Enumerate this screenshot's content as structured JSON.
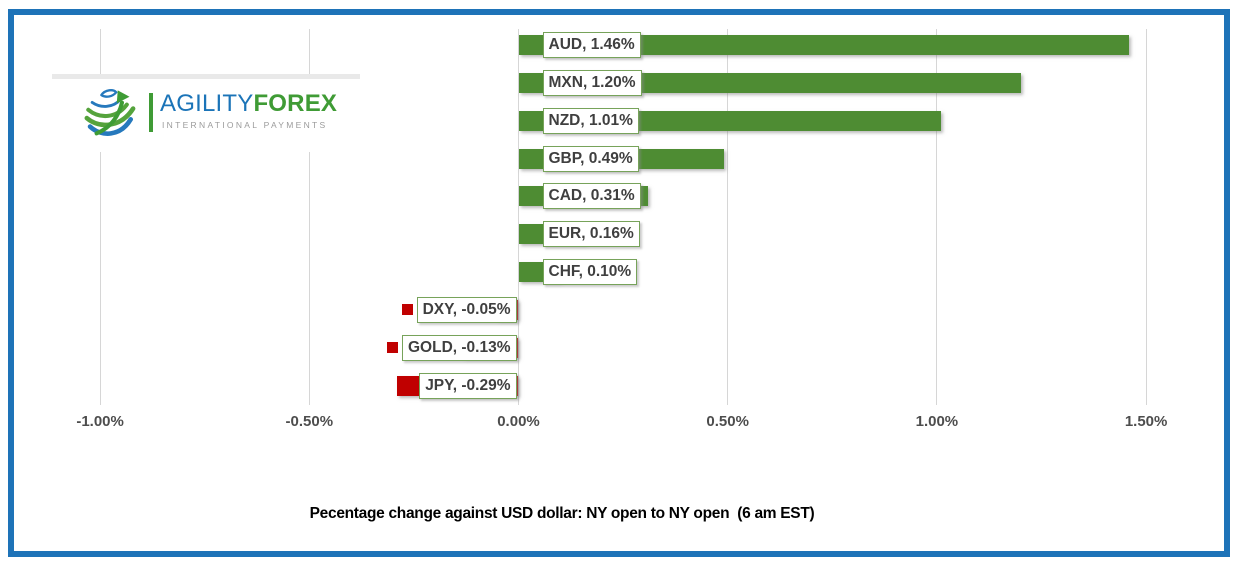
{
  "frame": {
    "border_color": "#1e73b8"
  },
  "logo": {
    "brand_primary": "AGILITY",
    "brand_secondary": "FOREX",
    "tagline": "INTERNATIONAL PAYMENTS",
    "primary_color": "#1b74b8",
    "secondary_color": "#3f9b35",
    "tagline_color": "#9b9b9b"
  },
  "chart_data": {
    "type": "bar",
    "orientation": "horizontal",
    "title": "Pecentage change against USD dollar: NY open to NY open  (6 am EST)",
    "categories": [
      "AUD",
      "MXN",
      "NZD",
      "GBP",
      "CAD",
      "EUR",
      "CHF",
      "DXY",
      "GOLD",
      "JPY"
    ],
    "values": [
      1.46,
      1.2,
      1.01,
      0.49,
      0.31,
      0.16,
      0.1,
      -0.05,
      -0.13,
      -0.29
    ],
    "data_labels": [
      "AUD, 1.46%",
      "MXN, 1.20%",
      "NZD, 1.01%",
      "GBP, 0.49%",
      "CAD, 0.31%",
      "EUR, 0.16%",
      "CHF, 0.10%",
      "DXY, -0.05%",
      "GOLD, -0.13%",
      "JPY, -0.29%"
    ],
    "x_ticks": [
      {
        "label": "-1.00%",
        "value": -1.0
      },
      {
        "label": "-0.50%",
        "value": -0.5
      },
      {
        "label": "0.00%",
        "value": 0.0
      },
      {
        "label": "0.50%",
        "value": 0.5
      },
      {
        "label": "1.00%",
        "value": 1.0
      },
      {
        "label": "1.50%",
        "value": 1.5
      }
    ],
    "xlim": [
      -1.1,
      1.7
    ],
    "grid": "vertical",
    "legend_position": "none",
    "positive_color": "#4e8c33",
    "negative_color": "#c00000",
    "label_border_color": "#77a35a",
    "gridline_color": "#d6d6d6",
    "axis_text_color": "#4d4d4d"
  }
}
